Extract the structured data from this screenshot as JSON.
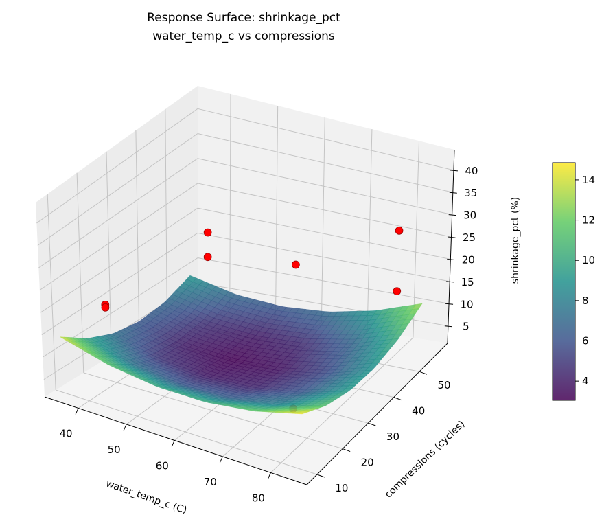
{
  "chart_data": {
    "type": "surface3d",
    "title": "Response Surface: shrinkage_pct",
    "subtitle": "water_temp_c vs compressions",
    "xlabel": "water_temp_c (C)",
    "ylabel": "compressions (cycles)",
    "zlabel": "shrinkage_pct (%)",
    "xlim": [
      33,
      87.5
    ],
    "ylim": [
      6,
      61
    ],
    "zlim": [
      1.1,
      44.6
    ],
    "xticks": [
      "40",
      "50",
      "60",
      "70",
      "80"
    ],
    "yticks": [
      "10",
      "20",
      "30",
      "40",
      "50"
    ],
    "zticks": [
      "5",
      "10",
      "15",
      "20",
      "25",
      "30",
      "35",
      "40"
    ],
    "grid": true,
    "colormap": "viridis",
    "surface": {
      "x": [
        35,
        45,
        55,
        65,
        75,
        85
      ],
      "y": [
        9,
        18.2,
        27.4,
        36.6,
        45.8,
        55
      ],
      "z": [
        [
          14.0,
          11.28,
          10.0,
          10.16,
          11.76,
          14.8
        ],
        [
          9.86,
          7.27,
          6.12,
          6.41,
          8.14,
          11.3
        ],
        [
          7.3,
          4.83,
          3.81,
          4.22,
          6.08,
          9.38
        ],
        [
          6.3,
          3.96,
          3.06,
          3.61,
          5.59,
          9.02
        ],
        [
          6.86,
          4.66,
          3.89,
          4.56,
          6.67,
          10.22
        ],
        [
          9.0,
          6.92,
          6.28,
          7.08,
          9.32,
          13.0
        ]
      ]
    },
    "observed_points": {
      "color": "#ff0000",
      "points": [
        {
          "x": 35,
          "y": 25,
          "z": 14.5
        },
        {
          "x": 35,
          "y": 25,
          "z": 13.9
        },
        {
          "x": 37,
          "y": 58,
          "z": 17
        },
        {
          "x": 37,
          "y": 58,
          "z": 12
        },
        {
          "x": 56,
          "y": 58,
          "z": 14
        },
        {
          "x": 78,
          "y": 58,
          "z": 26
        },
        {
          "x": 85,
          "y": 45,
          "z": 21.6
        },
        {
          "x": 76,
          "y": 22,
          "z": 5.5
        }
      ]
    },
    "colorbar": {
      "range": [
        3.05,
        14.85
      ],
      "ticks": [
        "4",
        "6",
        "8",
        "10",
        "12",
        "14"
      ]
    }
  }
}
